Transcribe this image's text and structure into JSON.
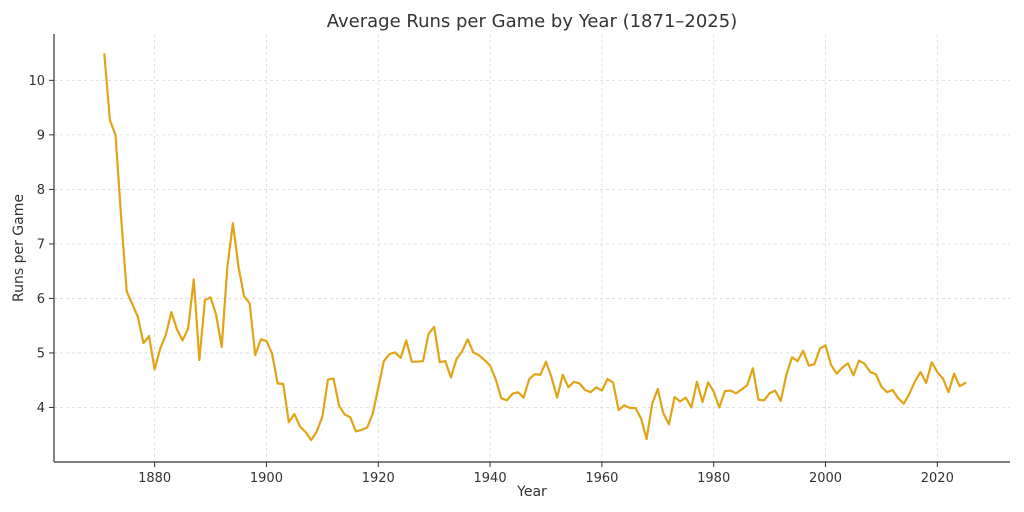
{
  "chart_data": {
    "type": "line",
    "title": "Average Runs per Game by Year (1871–2025)",
    "xlabel": "Year",
    "ylabel": "Runs per Game",
    "xlim": [
      1862,
      2033
    ],
    "ylim": [
      3.0,
      10.85
    ],
    "xticks": [
      1880,
      1900,
      1920,
      1940,
      1960,
      1980,
      2000,
      2020
    ],
    "yticks": [
      4,
      5,
      6,
      7,
      8,
      9,
      10
    ],
    "grid": true,
    "legend": "none",
    "series": [
      {
        "color": "#e0a416",
        "x": [
          1871,
          1872,
          1873,
          1874,
          1875,
          1876,
          1877,
          1878,
          1879,
          1880,
          1881,
          1882,
          1883,
          1884,
          1885,
          1886,
          1887,
          1888,
          1889,
          1890,
          1891,
          1892,
          1893,
          1894,
          1895,
          1896,
          1897,
          1898,
          1899,
          1900,
          1901,
          1902,
          1903,
          1904,
          1905,
          1906,
          1907,
          1908,
          1909,
          1910,
          1911,
          1912,
          1913,
          1914,
          1915,
          1916,
          1917,
          1918,
          1919,
          1920,
          1921,
          1922,
          1923,
          1924,
          1925,
          1926,
          1927,
          1928,
          1929,
          1930,
          1931,
          1932,
          1933,
          1934,
          1935,
          1936,
          1937,
          1938,
          1939,
          1940,
          1941,
          1942,
          1943,
          1944,
          1945,
          1946,
          1947,
          1948,
          1949,
          1950,
          1951,
          1952,
          1953,
          1954,
          1955,
          1956,
          1957,
          1958,
          1959,
          1960,
          1961,
          1962,
          1963,
          1964,
          1965,
          1966,
          1967,
          1968,
          1969,
          1970,
          1971,
          1972,
          1973,
          1974,
          1975,
          1976,
          1977,
          1978,
          1979,
          1980,
          1981,
          1982,
          1983,
          1984,
          1985,
          1986,
          1987,
          1988,
          1989,
          1990,
          1991,
          1992,
          1993,
          1994,
          1995,
          1996,
          1997,
          1998,
          1999,
          2000,
          2001,
          2002,
          2003,
          2004,
          2005,
          2006,
          2007,
          2008,
          2009,
          2010,
          2011,
          2012,
          2013,
          2014,
          2015,
          2016,
          2017,
          2018,
          2019,
          2020,
          2021,
          2022,
          2023,
          2024,
          2025
        ],
        "y": [
          10.48,
          9.27,
          9.0,
          7.5,
          6.13,
          5.9,
          5.66,
          5.18,
          5.31,
          4.7,
          5.08,
          5.33,
          5.75,
          5.43,
          5.23,
          5.45,
          6.35,
          4.87,
          5.97,
          6.02,
          5.7,
          5.11,
          6.57,
          7.38,
          6.58,
          6.04,
          5.91,
          4.96,
          5.25,
          5.22,
          4.99,
          4.44,
          4.43,
          3.73,
          3.88,
          3.65,
          3.55,
          3.4,
          3.56,
          3.83,
          4.51,
          4.53,
          4.03,
          3.87,
          3.82,
          3.56,
          3.59,
          3.63,
          3.88,
          4.36,
          4.85,
          4.98,
          5.01,
          4.91,
          5.23,
          4.84,
          4.84,
          4.85,
          5.35,
          5.48,
          4.83,
          4.85,
          4.55,
          4.89,
          5.03,
          5.25,
          5.01,
          4.96,
          4.87,
          4.77,
          4.52,
          4.17,
          4.13,
          4.25,
          4.28,
          4.18,
          4.52,
          4.61,
          4.6,
          4.84,
          4.55,
          4.18,
          4.6,
          4.37,
          4.47,
          4.44,
          4.32,
          4.28,
          4.37,
          4.31,
          4.52,
          4.46,
          3.95,
          4.04,
          3.99,
          3.99,
          3.8,
          3.42,
          4.07,
          4.34,
          3.89,
          3.69,
          4.19,
          4.11,
          4.18,
          4.0,
          4.47,
          4.1,
          4.46,
          4.29,
          4.0,
          4.3,
          4.31,
          4.26,
          4.33,
          4.41,
          4.72,
          4.14,
          4.13,
          4.26,
          4.31,
          4.12,
          4.6,
          4.92,
          4.85,
          5.04,
          4.77,
          4.79,
          5.08,
          5.14,
          4.78,
          4.62,
          4.73,
          4.81,
          4.59,
          4.86,
          4.8,
          4.65,
          4.61,
          4.38,
          4.28,
          4.32,
          4.17,
          4.07,
          4.25,
          4.48,
          4.65,
          4.45,
          4.83,
          4.65,
          4.53,
          4.28,
          4.62,
          4.39,
          4.45
        ]
      }
    ]
  }
}
